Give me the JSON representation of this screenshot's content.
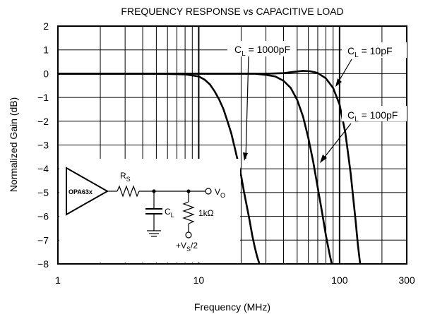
{
  "chart_data": {
    "type": "line",
    "title": "FREQUENCY RESPONSE vs CAPACITIVE LOAD",
    "xlabel": "Frequency (MHz)",
    "ylabel": "Normalized Gain (dB)",
    "x_scale": "log",
    "xlim": [
      1,
      300
    ],
    "ylim": [
      -8,
      2
    ],
    "grid": true,
    "x_ticks": [
      {
        "value": 1,
        "label": "1"
      },
      {
        "value": 10,
        "label": "10"
      },
      {
        "value": 100,
        "label": "100"
      },
      {
        "value": 300,
        "label": "300"
      }
    ],
    "y_ticks": [
      {
        "value": 2,
        "label": "2"
      },
      {
        "value": 1,
        "label": "1"
      },
      {
        "value": 0,
        "label": "0"
      },
      {
        "value": -1,
        "label": "−1"
      },
      {
        "value": -2,
        "label": "−2"
      },
      {
        "value": -3,
        "label": "−3"
      },
      {
        "value": -4,
        "label": "−4"
      },
      {
        "value": -5,
        "label": "−5"
      },
      {
        "value": -6,
        "label": "−6"
      },
      {
        "value": -7,
        "label": "−7"
      },
      {
        "value": -8,
        "label": "−8"
      }
    ],
    "series": [
      {
        "id": "cl-10pf",
        "label_main": "C",
        "label_sub": "L",
        "label_rest": " = 10pF",
        "x": [
          1,
          5,
          10,
          20,
          30,
          40,
          48,
          55,
          62,
          70,
          80,
          90,
          100,
          110,
          120,
          130,
          135,
          140
        ],
        "y": [
          0,
          0,
          0,
          0,
          0,
          0.02,
          0.08,
          0.12,
          0.1,
          0.03,
          -0.2,
          -0.6,
          -1.3,
          -2.5,
          -4.2,
          -6.2,
          -7.2,
          -8
        ]
      },
      {
        "id": "cl-100pf",
        "label_main": "C",
        "label_sub": "L",
        "label_rest": " = 100pF",
        "x": [
          1,
          5,
          10,
          15,
          20,
          25,
          30,
          35,
          40,
          45,
          50,
          55,
          60,
          65,
          70,
          75,
          80,
          85,
          88
        ],
        "y": [
          0,
          0,
          0,
          0,
          0,
          0,
          -0.05,
          -0.12,
          -0.3,
          -0.6,
          -1.1,
          -1.8,
          -2.7,
          -3.7,
          -4.8,
          -5.8,
          -6.8,
          -7.6,
          -8
        ]
      },
      {
        "id": "cl-1000pf",
        "label_main": "C",
        "label_sub": "L",
        "label_rest": " = 1000pF",
        "x": [
          1,
          5,
          8,
          10,
          11,
          12,
          13,
          14,
          15,
          16,
          17,
          18,
          19,
          20,
          21,
          22,
          23,
          24,
          25,
          26,
          27
        ],
        "y": [
          0,
          0,
          -0.03,
          -0.12,
          -0.25,
          -0.45,
          -0.75,
          -1.1,
          -1.5,
          -2.0,
          -2.5,
          -3.1,
          -3.7,
          -4.3,
          -5.0,
          -5.6,
          -6.2,
          -6.8,
          -7.3,
          -7.7,
          -8
        ]
      }
    ]
  },
  "schematic": {
    "amp_label": "OPA63x",
    "rs_main": "R",
    "rs_sub": "S",
    "cl_main": "C",
    "cl_sub": "L",
    "load_label": "1kΩ",
    "vo_main": "V",
    "vo_sub": "O",
    "vs_pre": "+V",
    "vs_sub": "S",
    "vs_post": "/2"
  }
}
